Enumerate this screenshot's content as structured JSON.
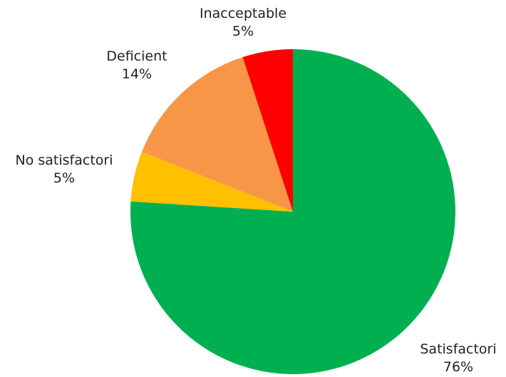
{
  "chart_data": {
    "type": "pie",
    "start_angle_deg": 90,
    "direction": "clockwise",
    "slices": [
      {
        "label": "Satisfactori",
        "value": 76,
        "value_label": "76%",
        "color": "#00B050"
      },
      {
        "label": "No satisfactori",
        "value": 5,
        "value_label": "5%",
        "color": "#FFC000"
      },
      {
        "label": "Deficient",
        "value": 14,
        "value_label": "14%",
        "color": "#F79646"
      },
      {
        "label": "Inacceptable",
        "value": 5,
        "value_label": "5%",
        "color": "#FF0000"
      }
    ]
  }
}
